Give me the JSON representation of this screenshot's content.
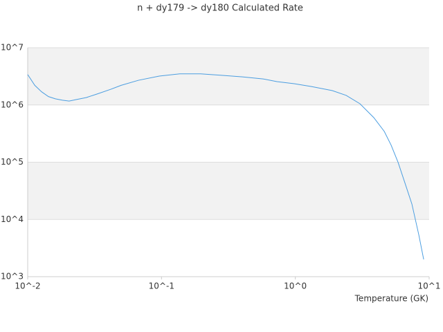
{
  "chart_data": {
    "type": "line",
    "title": "n + dy179 -> dy180 Calculated Rate",
    "x_label": "Temperature (GK)",
    "log_x": true,
    "log_y": true,
    "grid_bands": true,
    "xlim": [
      0.01,
      10
    ],
    "ylim": [
      1000,
      10000000
    ],
    "xticks": [
      {
        "value": 0.01,
        "label": "10^-2"
      },
      {
        "value": 0.1,
        "label": "10^-1"
      },
      {
        "value": 1,
        "label": "10^0"
      },
      {
        "value": 10,
        "label": "10^1"
      }
    ],
    "yticks": [
      {
        "value": 1000,
        "label": "10^3"
      },
      {
        "value": 10000,
        "label": "10^4"
      },
      {
        "value": 100000,
        "label": "10^5"
      },
      {
        "value": 1000000,
        "label": "10^6"
      },
      {
        "value": 10000000,
        "label": "10^7"
      }
    ],
    "x": [
      0.01,
      0.0113,
      0.0127,
      0.0143,
      0.0161,
      0.0182,
      0.0204,
      0.023,
      0.0275,
      0.0329,
      0.0418,
      0.0499,
      0.0673,
      0.0962,
      0.137,
      0.196,
      0.281,
      0.402,
      0.574,
      0.728,
      0.98,
      1.32,
      1.89,
      2.4,
      3.04,
      3.86,
      4.62,
      5.2,
      5.86,
      6.6,
      7.43,
      8.38,
      9.1
    ],
    "series": [
      {
        "color": "#4a9de0",
        "values": [
          3400000,
          2200000,
          1700000,
          1400000,
          1280000,
          1210000,
          1170000,
          1240000,
          1350000,
          1550000,
          1880000,
          2200000,
          2700000,
          3200000,
          3500000,
          3500000,
          3300000,
          3100000,
          2850000,
          2560000,
          2350000,
          2100000,
          1780000,
          1470000,
          1050000,
          600000,
          345000,
          198000,
          99000,
          43000,
          18600,
          5300,
          2000
        ]
      }
    ]
  }
}
